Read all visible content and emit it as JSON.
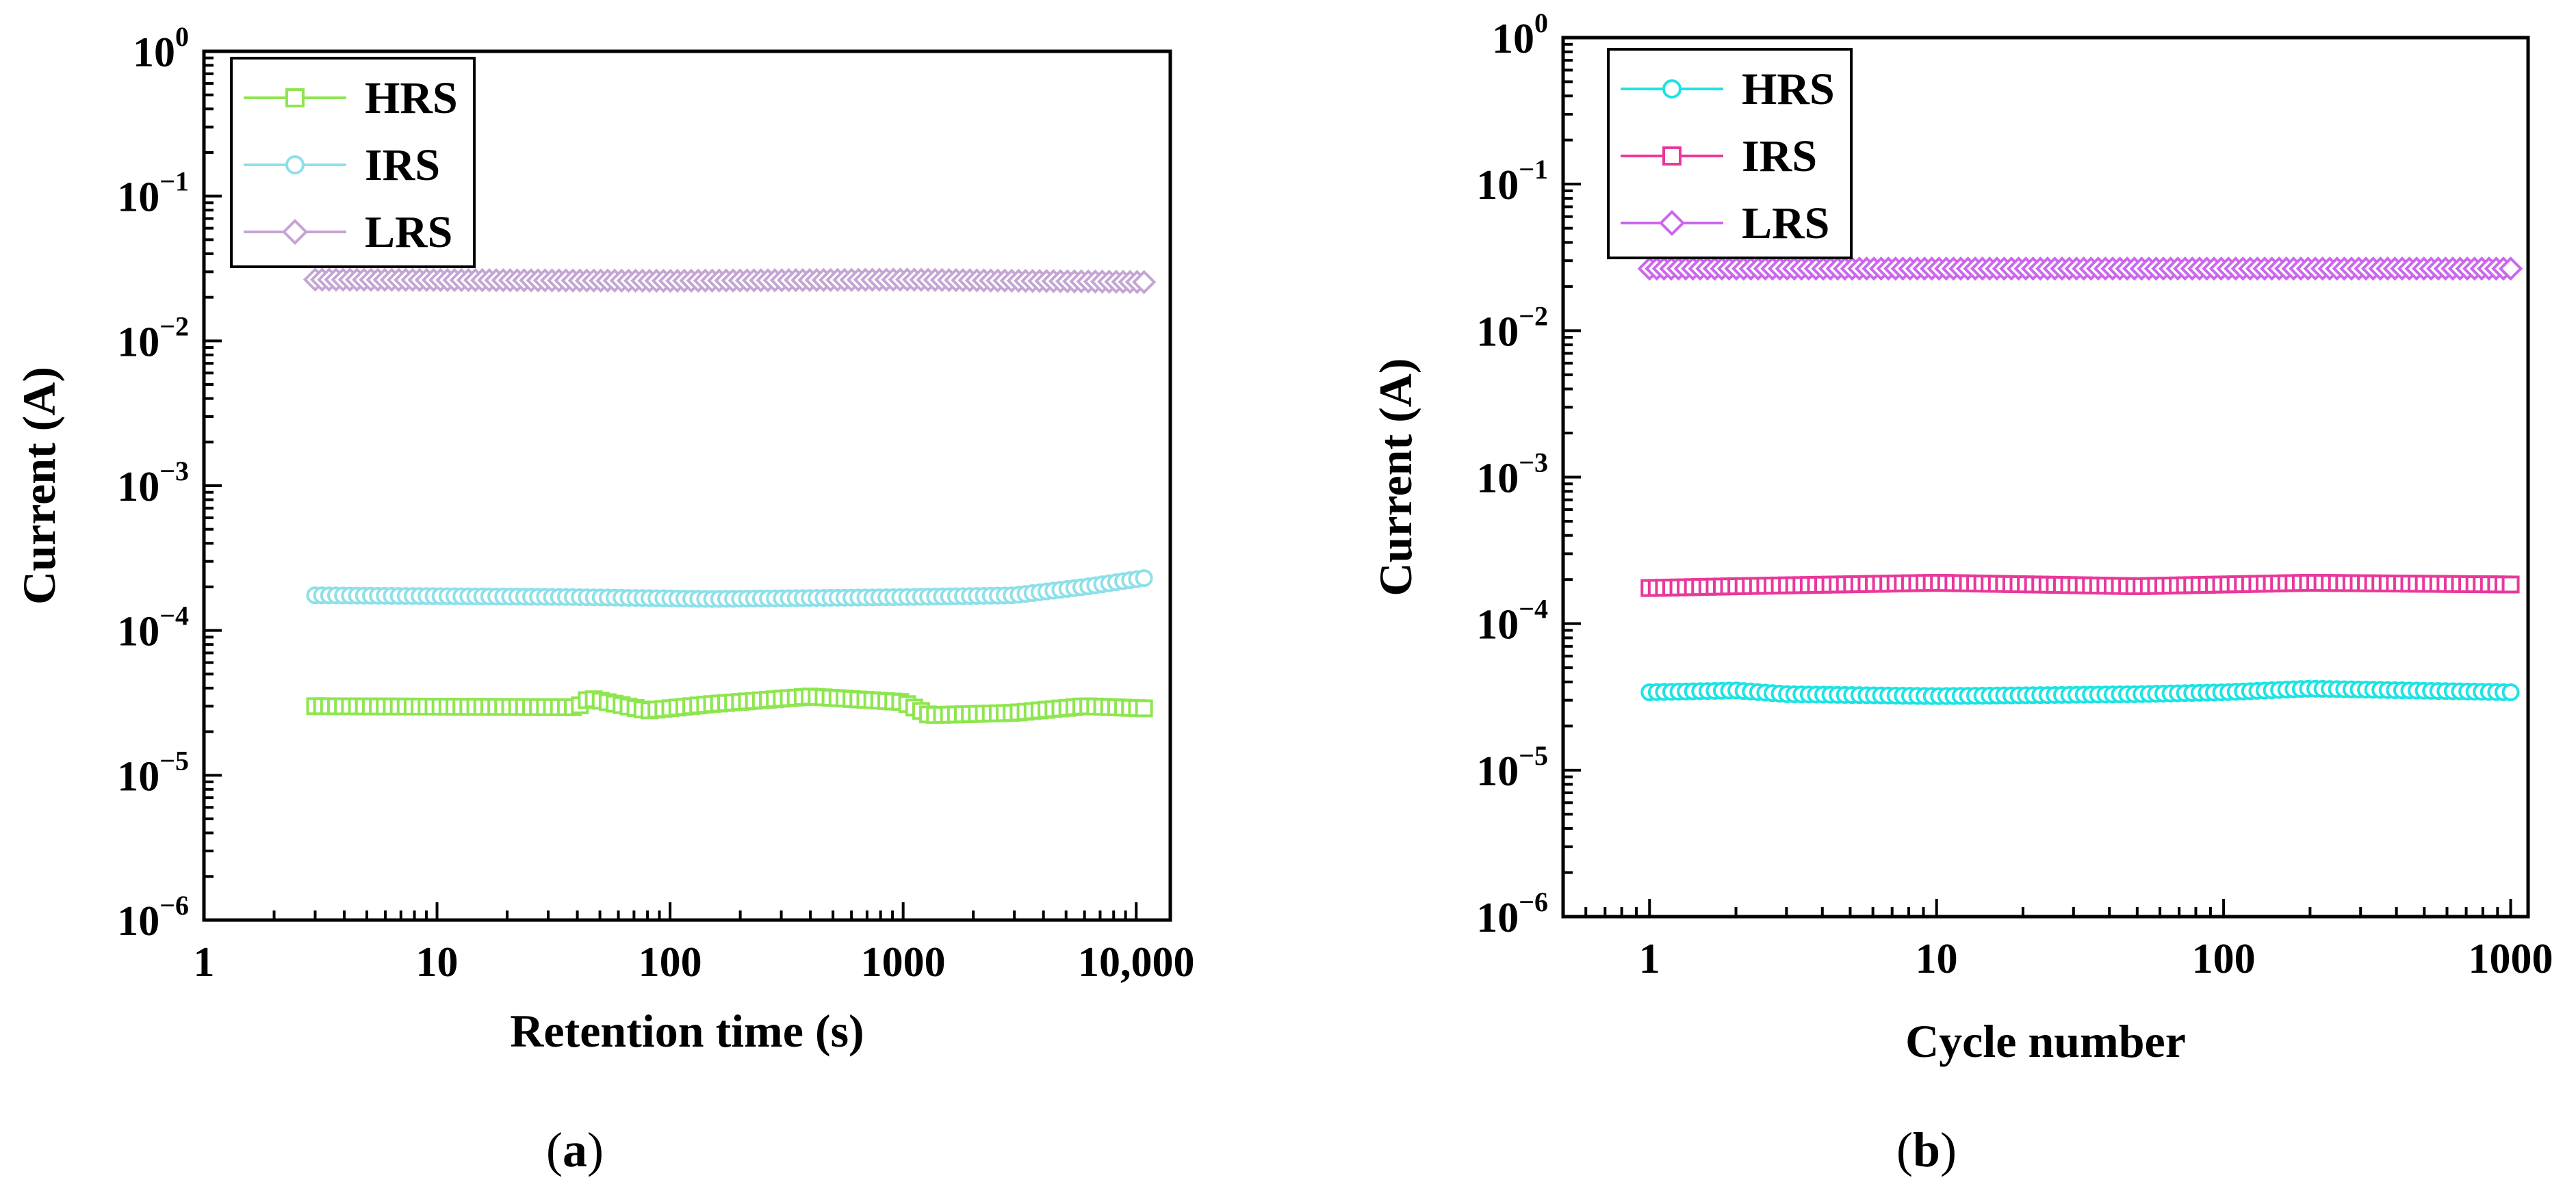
{
  "chart_data": [
    {
      "panel_label": "a",
      "type": "line",
      "title": "",
      "xlabel": "Retention time (s)",
      "ylabel": "Current (A)",
      "xscale": "log",
      "yscale": "log",
      "xlim": [
        1,
        14000
      ],
      "ylim": [
        1e-06,
        1
      ],
      "x_ticks": [
        1,
        10,
        100,
        1000,
        10000
      ],
      "x_tick_labels": [
        "1",
        "10",
        "100",
        "1000",
        "10,000"
      ],
      "y_ticks": [
        1e-06,
        1e-05,
        0.0001,
        0.001,
        0.01,
        0.1,
        1
      ],
      "y_tick_labels": [
        {
          "base": "10",
          "exp": "−6"
        },
        {
          "base": "10",
          "exp": "−5"
        },
        {
          "base": "10",
          "exp": "−4"
        },
        {
          "base": "10",
          "exp": "−3"
        },
        {
          "base": "10",
          "exp": "−2"
        },
        {
          "base": "10",
          "exp": "−1"
        },
        {
          "base": "10",
          "exp": "0"
        }
      ],
      "legend_position": "top-left",
      "x_range": [
        3,
        10800
      ],
      "series": [
        {
          "name": "HRS",
          "color": "#8ee64f",
          "marker": "square",
          "points": [
            [
              3,
              3e-05
            ],
            [
              40,
              2.95e-05
            ],
            [
              45,
              3.4e-05
            ],
            [
              80,
              2.8e-05
            ],
            [
              150,
              3.1e-05
            ],
            [
              400,
              3.5e-05
            ],
            [
              1000,
              3.2e-05
            ],
            [
              1300,
              2.6e-05
            ],
            [
              3000,
              2.7e-05
            ],
            [
              6000,
              3e-05
            ],
            [
              10800,
              2.9e-05
            ]
          ]
        },
        {
          "name": "IRS",
          "color": "#8ee0e8",
          "marker": "circle",
          "points": [
            [
              3,
              0.000175
            ],
            [
              40,
              0.00017
            ],
            [
              150,
              0.000165
            ],
            [
              1000,
              0.00017
            ],
            [
              3000,
              0.000175
            ],
            [
              6000,
              0.0002
            ],
            [
              10800,
              0.00023
            ]
          ]
        },
        {
          "name": "LRS",
          "color": "#c5a5d3",
          "marker": "diamond",
          "points": [
            [
              3,
              0.0265
            ],
            [
              100,
              0.026
            ],
            [
              1000,
              0.0265
            ],
            [
              10800,
              0.0255
            ]
          ]
        }
      ]
    },
    {
      "panel_label": "b",
      "type": "line",
      "title": "",
      "xlabel": "Cycle number",
      "ylabel": "Current (A)",
      "xscale": "log",
      "yscale": "log",
      "xlim": [
        0.5,
        1150
      ],
      "ylim": [
        1e-06,
        1
      ],
      "x_ticks": [
        1,
        10,
        100,
        1000
      ],
      "x_tick_labels": [
        "1",
        "10",
        "100",
        "1000"
      ],
      "y_ticks": [
        1e-06,
        1e-05,
        0.0001,
        0.001,
        0.01,
        0.1,
        1
      ],
      "y_tick_labels": [
        {
          "base": "10",
          "exp": "−6"
        },
        {
          "base": "10",
          "exp": "−5"
        },
        {
          "base": "10",
          "exp": "−4"
        },
        {
          "base": "10",
          "exp": "−3"
        },
        {
          "base": "10",
          "exp": "−2"
        },
        {
          "base": "10",
          "exp": "−1"
        },
        {
          "base": "10",
          "exp": "0"
        }
      ],
      "legend_position": "top-left",
      "x_range": [
        1,
        1000
      ],
      "series": [
        {
          "name": "HRS",
          "color": "#1ee3e3",
          "marker": "circle",
          "points": [
            [
              1,
              3.4e-05
            ],
            [
              2,
              3.5e-05
            ],
            [
              3,
              3.3e-05
            ],
            [
              10,
              3.2e-05
            ],
            [
              50,
              3.3e-05
            ],
            [
              100,
              3.4e-05
            ],
            [
              200,
              3.6e-05
            ],
            [
              1000,
              3.4e-05
            ]
          ]
        },
        {
          "name": "IRS",
          "color": "#e8399b",
          "marker": "square",
          "points": [
            [
              1,
              0.000175
            ],
            [
              2,
              0.00018
            ],
            [
              10,
              0.00019
            ],
            [
              50,
              0.00018
            ],
            [
              100,
              0.000185
            ],
            [
              200,
              0.00019
            ],
            [
              1000,
              0.000185
            ]
          ]
        },
        {
          "name": "LRS",
          "color": "#cc66ee",
          "marker": "diamond",
          "points": [
            [
              1,
              0.0265
            ],
            [
              100,
              0.0265
            ],
            [
              1000,
              0.0265
            ]
          ]
        }
      ]
    }
  ]
}
